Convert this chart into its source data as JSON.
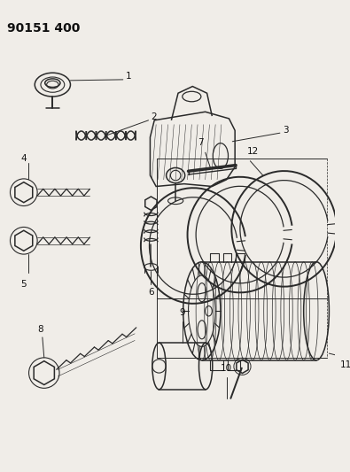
{
  "title": "90151 400",
  "bg_color": "#f0ede8",
  "line_color": "#2a2a2a",
  "label_color": "#111111",
  "title_fontsize": 10,
  "label_fontsize": 7.5
}
